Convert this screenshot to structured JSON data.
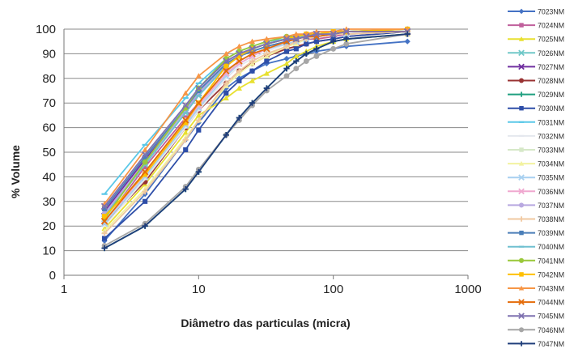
{
  "chart_data": {
    "type": "line",
    "xlabel": "Diâmetro das particulas (micra)",
    "ylabel": "% Volume",
    "xscale": "log",
    "xlim": [
      1,
      1000
    ],
    "ylim": [
      0,
      100
    ],
    "x_ticks": [
      "1",
      "10",
      "100",
      "1000"
    ],
    "y_ticks": [
      "0",
      "10",
      "20",
      "30",
      "40",
      "50",
      "60",
      "70",
      "80",
      "90",
      "100"
    ],
    "grid": "horizontal",
    "legend_position": "right",
    "x": [
      2,
      4,
      8,
      10,
      16,
      20,
      25,
      32,
      45,
      53,
      63,
      75,
      100,
      125,
      355
    ],
    "series": [
      {
        "name": "7023NM",
        "color": "#4472c4",
        "marker": "diamond",
        "values": [
          14,
          33,
          55,
          62,
          76,
          80,
          83,
          86,
          88,
          89,
          90,
          91,
          92,
          93,
          95
        ]
      },
      {
        "name": "7024NM",
        "color": "#c0609c",
        "marker": "square",
        "values": [
          22,
          44,
          64,
          70,
          83,
          87,
          90,
          92,
          94,
          95,
          96,
          96,
          97,
          98,
          99
        ]
      },
      {
        "name": "7025NM",
        "color": "#e8e030",
        "marker": "triangle",
        "values": [
          19,
          37,
          58,
          65,
          72,
          76,
          79,
          82,
          86,
          89,
          91,
          93,
          95,
          96,
          98
        ]
      },
      {
        "name": "7026NM",
        "color": "#70c8c8",
        "marker": "x",
        "values": [
          24,
          45,
          66,
          73,
          85,
          89,
          91,
          93,
          95,
          96,
          97,
          97,
          98,
          98,
          99
        ]
      },
      {
        "name": "7027NM",
        "color": "#7030a0",
        "marker": "x",
        "values": [
          26,
          47,
          67,
          74,
          86,
          90,
          92,
          94,
          96,
          96,
          97,
          98,
          98,
          99,
          99
        ]
      },
      {
        "name": "7028NM",
        "color": "#993333",
        "marker": "circle",
        "values": [
          21,
          38,
          60,
          67,
          78,
          83,
          86,
          89,
          92,
          93,
          94,
          95,
          96,
          97,
          99
        ]
      },
      {
        "name": "7029NM",
        "color": "#1f9f7f",
        "marker": "plus",
        "values": [
          11,
          20,
          35,
          42,
          57,
          64,
          70,
          76,
          84,
          87,
          90,
          92,
          95,
          96,
          98
        ]
      },
      {
        "name": "7030NM",
        "color": "#2e4ea8",
        "marker": "square",
        "values": [
          15,
          30,
          51,
          59,
          74,
          79,
          83,
          87,
          91,
          92,
          94,
          95,
          96,
          97,
          99
        ]
      },
      {
        "name": "7031NM",
        "color": "#5bc8e8",
        "marker": "dash",
        "values": [
          33,
          53,
          72,
          78,
          88,
          91,
          93,
          95,
          96,
          97,
          98,
          98,
          99,
          99,
          100
        ]
      },
      {
        "name": "7032NM",
        "color": "#e4e8ee",
        "marker": "dash",
        "values": [
          20,
          39,
          60,
          67,
          80,
          85,
          88,
          91,
          94,
          95,
          96,
          97,
          98,
          98,
          99
        ]
      },
      {
        "name": "7033NM",
        "color": "#d6e8c8",
        "marker": "square",
        "values": [
          23,
          42,
          63,
          70,
          82,
          87,
          90,
          92,
          95,
          96,
          97,
          97,
          98,
          99,
          99
        ]
      },
      {
        "name": "7034NM",
        "color": "#f2f2a0",
        "marker": "triangle",
        "values": [
          18,
          35,
          56,
          63,
          77,
          82,
          86,
          89,
          93,
          94,
          96,
          97,
          98,
          98,
          99
        ]
      },
      {
        "name": "7035NM",
        "color": "#a8d0f0",
        "marker": "x",
        "values": [
          21,
          40,
          61,
          68,
          81,
          86,
          89,
          92,
          94,
          95,
          96,
          97,
          98,
          98,
          99
        ]
      },
      {
        "name": "7036NM",
        "color": "#f0a8d0",
        "marker": "x",
        "values": [
          22,
          41,
          62,
          69,
          82,
          86,
          89,
          92,
          95,
          96,
          97,
          97,
          98,
          99,
          99
        ]
      },
      {
        "name": "7037NM",
        "color": "#b8a8e0",
        "marker": "circle",
        "values": [
          25,
          46,
          67,
          74,
          86,
          90,
          92,
          94,
          96,
          97,
          97,
          98,
          99,
          99,
          100
        ]
      },
      {
        "name": "7038NM",
        "color": "#f0c8a0",
        "marker": "plus",
        "values": [
          17,
          34,
          55,
          63,
          78,
          83,
          87,
          90,
          93,
          95,
          96,
          97,
          98,
          98,
          99
        ]
      },
      {
        "name": "7039NM",
        "color": "#4a7eb8",
        "marker": "square",
        "values": [
          27,
          48,
          68,
          75,
          86,
          89,
          91,
          93,
          95,
          96,
          97,
          97,
          98,
          99,
          99
        ]
      },
      {
        "name": "7040NM",
        "color": "#70c0d0",
        "marker": "dash",
        "values": [
          24,
          45,
          66,
          73,
          85,
          89,
          92,
          94,
          96,
          97,
          97,
          98,
          98,
          99,
          100
        ]
      },
      {
        "name": "7041NM",
        "color": "#9ac83a",
        "marker": "circle",
        "values": [
          23,
          46,
          68,
          76,
          88,
          91,
          93,
          95,
          97,
          97,
          98,
          98,
          99,
          99,
          100
        ]
      },
      {
        "name": "7042NM",
        "color": "#ffc000",
        "marker": "square",
        "values": [
          24,
          41,
          62,
          70,
          85,
          89,
          92,
          94,
          96,
          97,
          98,
          98,
          99,
          99,
          100
        ]
      },
      {
        "name": "7043NM",
        "color": "#f79646",
        "marker": "triangle",
        "values": [
          29,
          51,
          74,
          81,
          90,
          93,
          95,
          96,
          97,
          98,
          98,
          99,
          99,
          100,
          100
        ]
      },
      {
        "name": "7044NM",
        "color": "#e46c0a",
        "marker": "x",
        "values": [
          22,
          42,
          63,
          70,
          83,
          87,
          90,
          92,
          95,
          96,
          97,
          97,
          98,
          99,
          99
        ]
      },
      {
        "name": "7045NM",
        "color": "#7f72b0",
        "marker": "x",
        "values": [
          28,
          49,
          69,
          76,
          87,
          90,
          92,
          94,
          96,
          96,
          97,
          98,
          98,
          99,
          99
        ]
      },
      {
        "name": "7046NM",
        "color": "#a6a6a6",
        "marker": "circle",
        "values": [
          12,
          21,
          36,
          43,
          57,
          63,
          69,
          75,
          81,
          84,
          87,
          89,
          92,
          94,
          98
        ]
      },
      {
        "name": "7047NM",
        "color": "#1f3d7a",
        "marker": "plus",
        "values": [
          11,
          20,
          35,
          42,
          57,
          64,
          70,
          76,
          84,
          87,
          90,
          92,
          95,
          96,
          98
        ]
      }
    ]
  }
}
